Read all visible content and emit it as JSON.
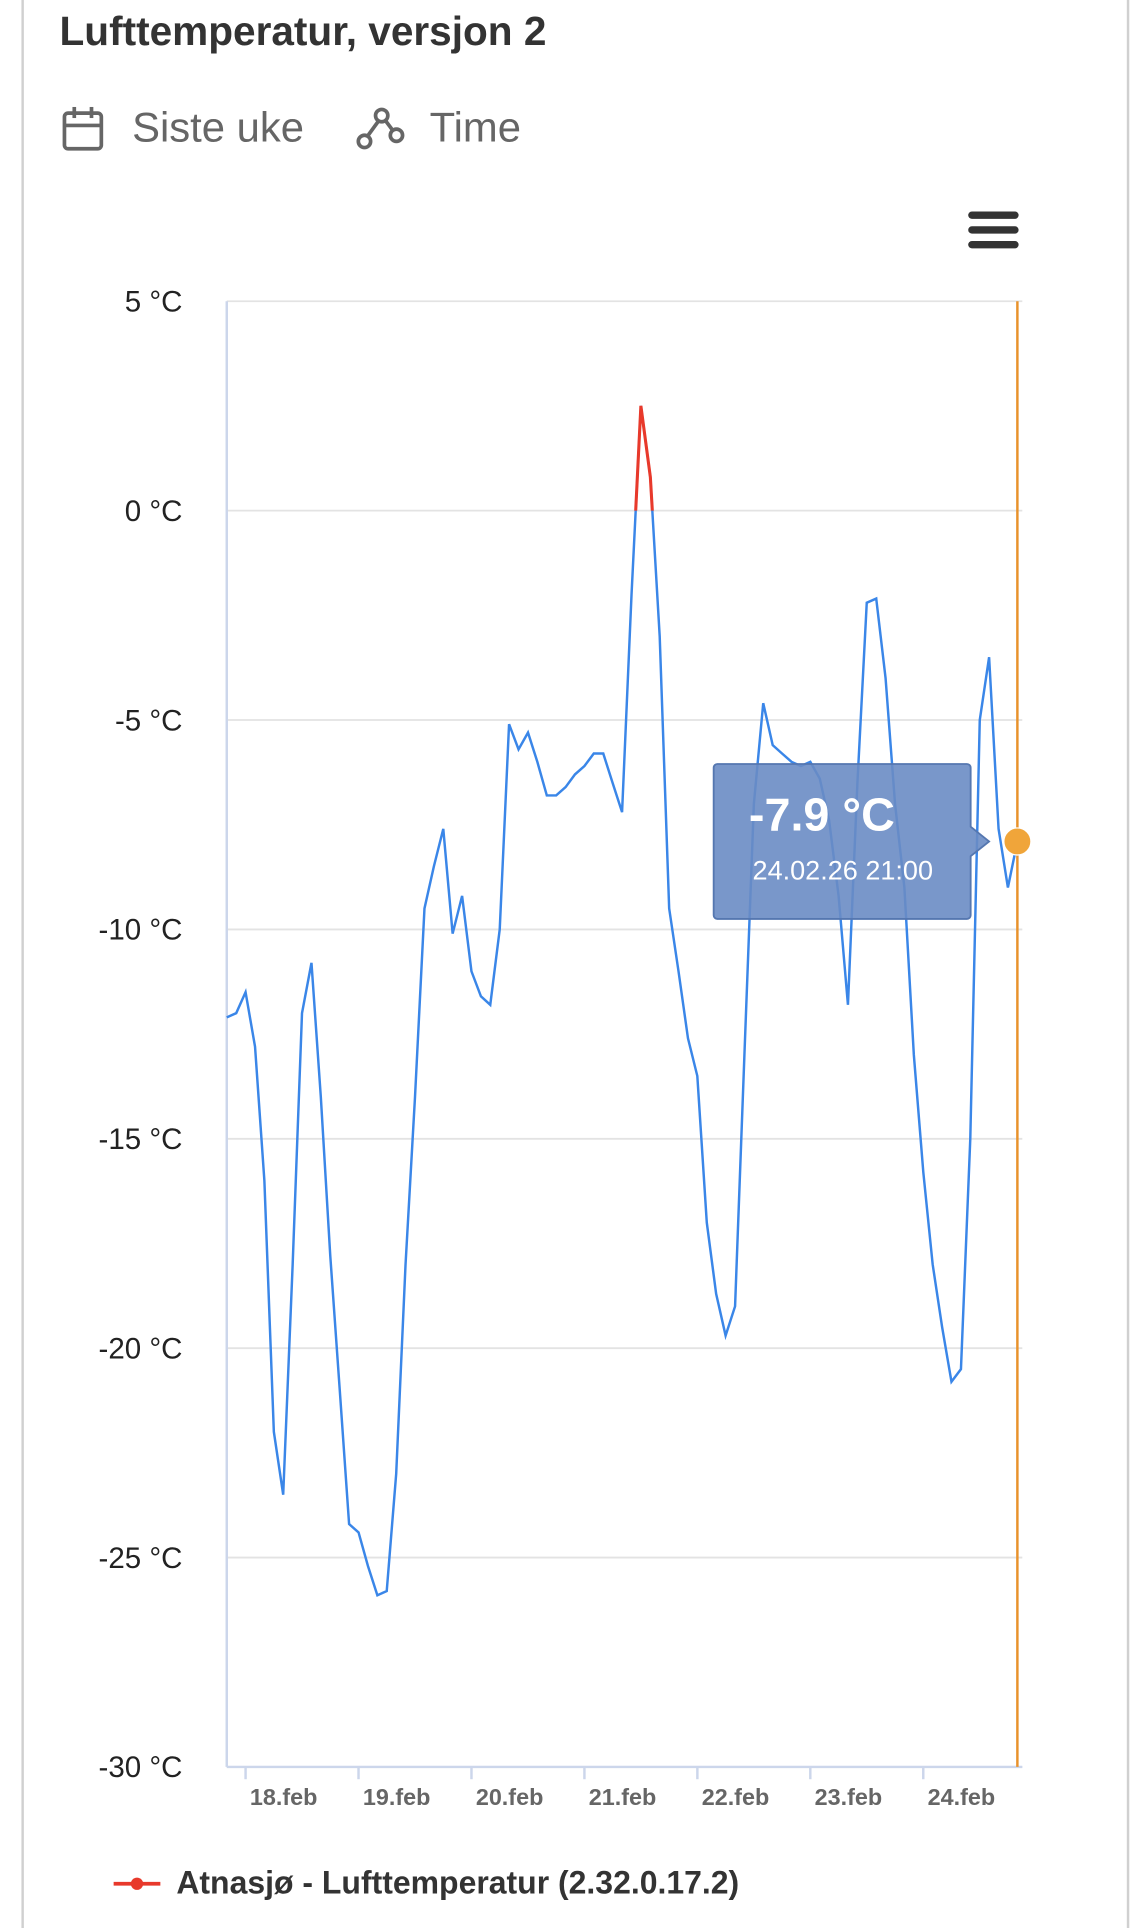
{
  "header": {
    "title": "Lufttemperatur, versjon 2",
    "period": "Siste uke",
    "resolution": "Time"
  },
  "chart_data": {
    "type": "line",
    "categories": [
      null,
      null,
      "18.feb",
      null,
      null,
      null,
      null,
      null,
      null,
      null,
      null,
      null,
      null,
      null,
      "19.feb",
      null,
      null,
      null,
      null,
      null,
      null,
      null,
      null,
      null,
      null,
      null,
      "20.feb",
      null,
      null,
      null,
      null,
      null,
      null,
      null,
      null,
      null,
      null,
      null,
      "21.feb",
      null,
      null,
      null,
      null,
      null,
      null,
      null,
      null,
      null,
      null,
      null,
      "22.feb",
      null,
      null,
      null,
      null,
      null,
      null,
      null,
      null,
      null,
      null,
      null,
      "23.feb",
      null,
      null,
      null,
      null,
      null,
      null,
      null,
      null,
      null,
      null,
      null,
      "24.feb",
      null,
      null,
      null,
      null,
      null,
      null,
      null,
      null,
      null,
      null
    ],
    "series": [
      {
        "name": "Atnasjø - Lufttemperatur (2.32.0.17.2)",
        "color": "#e8392b",
        "negative_color": "#3a86e8",
        "threshold": 0,
        "values": [
          -12.1,
          -12.0,
          -11.5,
          -12.8,
          -16,
          -22,
          -23.5,
          -18,
          -12,
          -10.8,
          -14,
          -17.8,
          -21,
          -24.2,
          -24.4,
          -25.2,
          -25.9,
          -25.8,
          -23,
          -18,
          -14,
          -9.5,
          -8.5,
          -7.6,
          -10.1,
          -9.2,
          -11,
          -11.6,
          -11.8,
          -10,
          -5.1,
          -5.7,
          -5.3,
          -6,
          -6.8,
          -6.8,
          -6.6,
          -6.3,
          -6.1,
          -5.8,
          -5.8,
          -6.5,
          -7.2,
          -2,
          2.5,
          0.8,
          -3,
          -9.5,
          -11,
          -12.6,
          -13.5,
          -17,
          -18.7,
          -19.7,
          -19,
          -13,
          -7,
          -4.6,
          -5.6,
          -5.8,
          -6.0,
          -6.1,
          -6,
          -6.4,
          -7.4,
          -9.2,
          -11.8,
          -6.5,
          -2.2,
          -2.1,
          -4,
          -7,
          -9,
          -13,
          -15.8,
          -18,
          -19.5,
          -20.8,
          -20.5,
          -15,
          -5,
          -3.5,
          -7.6,
          -9,
          -7.9
        ]
      }
    ],
    "ylim": [
      -30,
      5
    ],
    "yticks": [
      {
        "value": -30,
        "label": "-30 °C"
      },
      {
        "value": -25,
        "label": "-25 °C"
      },
      {
        "value": -20,
        "label": "-20 °C"
      },
      {
        "value": -15,
        "label": "-15 °C"
      },
      {
        "value": -10,
        "label": "-10 °C"
      },
      {
        "value": -5,
        "label": "-5 °C"
      },
      {
        "value": 0,
        "label": "0 °C"
      },
      {
        "value": 5,
        "label": "5 °C"
      }
    ],
    "grid": true,
    "crosshair_color": "#e8922b",
    "tooltip": {
      "label": "-7.9 °C",
      "time": "24.02.26 21:00"
    }
  }
}
